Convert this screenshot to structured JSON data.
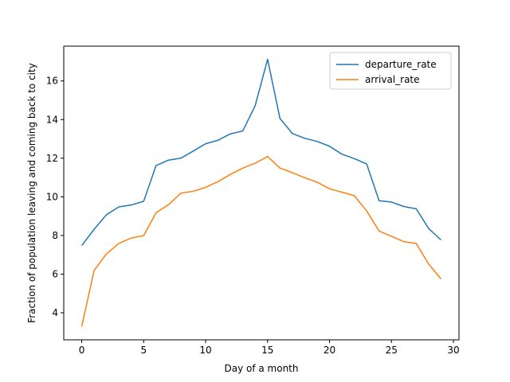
{
  "chart_data": {
    "type": "line",
    "xlabel": "Day of a month",
    "ylabel": "Fraction of population leaving and coming back to city",
    "xlim": [
      -1.45,
      30.45
    ],
    "ylim": [
      2.6,
      17.8
    ],
    "x_ticks": [
      0,
      5,
      10,
      15,
      20,
      25,
      30
    ],
    "y_ticks": [
      4,
      6,
      8,
      10,
      12,
      14,
      16
    ],
    "legend_position": "top-right",
    "grid": false,
    "x": [
      0,
      1,
      2,
      3,
      4,
      5,
      6,
      7,
      8,
      9,
      10,
      11,
      12,
      13,
      14,
      15,
      16,
      17,
      18,
      19,
      20,
      21,
      22,
      23,
      24,
      25,
      26,
      27,
      28,
      29
    ],
    "series": [
      {
        "name": "departure_rate",
        "color": "#1f77b4",
        "values": [
          7.48,
          8.32,
          9.08,
          9.48,
          9.58,
          9.77,
          11.62,
          11.9,
          12.0,
          12.37,
          12.75,
          12.93,
          13.26,
          13.41,
          14.72,
          17.12,
          14.06,
          13.28,
          13.03,
          12.87,
          12.62,
          12.21,
          11.98,
          11.7,
          9.8,
          9.73,
          9.5,
          9.38,
          8.36,
          7.77
        ]
      },
      {
        "name": "arrival_rate",
        "color": "#ff7f0e",
        "values": [
          3.29,
          6.19,
          7.05,
          7.59,
          7.87,
          7.99,
          9.18,
          9.59,
          10.19,
          10.29,
          10.49,
          10.79,
          11.16,
          11.49,
          11.74,
          12.09,
          11.49,
          11.25,
          10.99,
          10.76,
          10.42,
          10.24,
          10.06,
          9.27,
          8.23,
          7.96,
          7.68,
          7.59,
          6.52,
          5.75
        ]
      }
    ]
  }
}
